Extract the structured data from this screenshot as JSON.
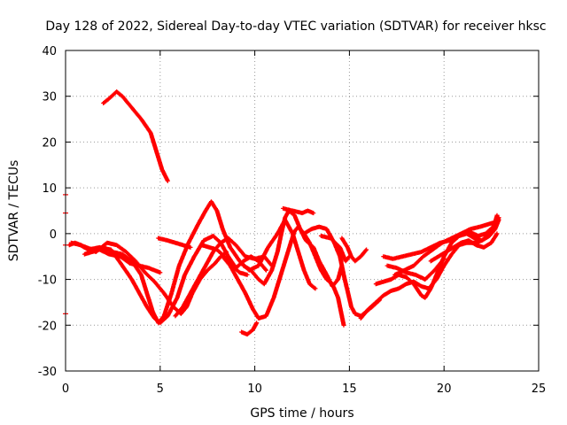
{
  "chart_data": {
    "type": "scatter",
    "title": "Day 128 of 2022, Sidereal Day-to-day VTEC variation (SDTVAR) for receiver hksc",
    "xlabel": "GPS time / hours",
    "ylabel": "SDTVAR / TECUs",
    "xlim": [
      0,
      25
    ],
    "ylim": [
      -30,
      40
    ],
    "xticks": [
      0,
      5,
      10,
      15,
      20,
      25
    ],
    "yticks": [
      -30,
      -20,
      -10,
      0,
      10,
      20,
      30,
      40
    ],
    "grid": true,
    "marker_color": "#ff0000",
    "series": [
      {
        "name": "track-1",
        "points": [
          [
            2.0,
            28.5
          ],
          [
            2.3,
            29.5
          ],
          [
            2.7,
            31.0
          ],
          [
            3.0,
            30.0
          ],
          [
            3.5,
            27.5
          ],
          [
            4.0,
            25.0
          ],
          [
            4.5,
            22.0
          ],
          [
            4.8,
            18.0
          ],
          [
            5.1,
            14.0
          ],
          [
            5.4,
            11.5
          ]
        ]
      },
      {
        "name": "track-2",
        "points": [
          [
            0.2,
            -2.5
          ],
          [
            0.5,
            -2.0
          ],
          [
            0.8,
            -2.5
          ],
          [
            1.0,
            -3.0
          ],
          [
            1.5,
            -3.5
          ],
          [
            2.0,
            -3.0
          ],
          [
            2.5,
            -4.0
          ],
          [
            3.0,
            -4.5
          ],
          [
            3.5,
            -6.0
          ],
          [
            4.0,
            -9.0
          ],
          [
            4.3,
            -13.0
          ],
          [
            4.6,
            -17.0
          ],
          [
            4.9,
            -19.5
          ],
          [
            5.2,
            -18.0
          ],
          [
            5.6,
            -13.0
          ],
          [
            6.0,
            -7.0
          ],
          [
            6.5,
            -2.0
          ],
          [
            7.0,
            2.0
          ],
          [
            7.4,
            5.0
          ],
          [
            7.7,
            7.0
          ],
          [
            8.0,
            5.0
          ],
          [
            8.3,
            1.0
          ],
          [
            8.7,
            -3.0
          ],
          [
            9.2,
            -6.0
          ],
          [
            9.7,
            -8.0
          ],
          [
            10.2,
            -7.0
          ],
          [
            10.7,
            -3.0
          ],
          [
            11.2,
            0.0
          ],
          [
            11.6,
            3.0
          ],
          [
            12.0,
            0.0
          ],
          [
            12.3,
            -4.0
          ],
          [
            12.6,
            -8.0
          ],
          [
            12.9,
            -11.0
          ],
          [
            13.2,
            -12.0
          ]
        ]
      },
      {
        "name": "track-3",
        "points": [
          [
            0.3,
            -2.0
          ],
          [
            0.8,
            -2.5
          ],
          [
            1.2,
            -3.5
          ],
          [
            1.8,
            -3.0
          ],
          [
            2.4,
            -3.5
          ],
          [
            3.0,
            -7.0
          ],
          [
            3.5,
            -10.0
          ],
          [
            3.9,
            -13.0
          ],
          [
            4.3,
            -16.0
          ],
          [
            4.7,
            -18.5
          ],
          [
            5.0,
            -19.5
          ],
          [
            5.4,
            -18.0
          ],
          [
            5.9,
            -14.0
          ],
          [
            6.3,
            -9.0
          ],
          [
            6.8,
            -5.0
          ],
          [
            7.3,
            -1.5
          ],
          [
            7.8,
            -0.5
          ],
          [
            8.2,
            -2.0
          ],
          [
            8.6,
            -5.0
          ],
          [
            9.0,
            -7.5
          ],
          [
            9.4,
            -6.0
          ],
          [
            9.8,
            -5.0
          ],
          [
            10.2,
            -6.0
          ],
          [
            10.6,
            -8.0
          ]
        ]
      },
      {
        "name": "track-4",
        "points": [
          [
            0.6,
            -2.2
          ],
          [
            1.1,
            -3.0
          ],
          [
            1.6,
            -4.0
          ],
          [
            2.2,
            -2.0
          ],
          [
            2.7,
            -2.5
          ],
          [
            3.2,
            -4.0
          ],
          [
            3.7,
            -6.0
          ],
          [
            4.2,
            -8.5
          ],
          [
            4.7,
            -10.5
          ],
          [
            5.2,
            -13.0
          ],
          [
            5.7,
            -16.0
          ],
          [
            6.1,
            -17.5
          ],
          [
            6.4,
            -16.0
          ],
          [
            6.7,
            -13.0
          ],
          [
            7.1,
            -10.0
          ],
          [
            7.5,
            -8.0
          ],
          [
            7.9,
            -6.5
          ],
          [
            8.2,
            -5.0
          ],
          [
            8.5,
            -4.0
          ]
        ]
      },
      {
        "name": "track-5",
        "points": [
          [
            1.0,
            -4.5
          ],
          [
            1.4,
            -4.0
          ],
          [
            1.8,
            -3.5
          ],
          [
            2.3,
            -4.5
          ],
          [
            2.9,
            -5.0
          ],
          [
            3.4,
            -6.5
          ],
          [
            3.9,
            -7.0
          ],
          [
            4.4,
            -7.5
          ],
          [
            5.0,
            -8.5
          ]
        ]
      },
      {
        "name": "track-6",
        "points": [
          [
            5.8,
            -18.0
          ],
          [
            6.2,
            -16.0
          ],
          [
            6.6,
            -13.0
          ],
          [
            7.0,
            -10.0
          ],
          [
            7.4,
            -7.0
          ],
          [
            7.8,
            -4.0
          ],
          [
            8.2,
            -2.0
          ],
          [
            8.6,
            -1.0
          ],
          [
            9.0,
            -2.5
          ],
          [
            9.5,
            -5.0
          ],
          [
            10.0,
            -5.5
          ],
          [
            10.5,
            -5.0
          ],
          [
            10.9,
            -7.0
          ]
        ]
      },
      {
        "name": "track-7",
        "points": [
          [
            8.3,
            -5.0
          ],
          [
            8.7,
            -7.0
          ],
          [
            9.1,
            -10.0
          ],
          [
            9.5,
            -13.0
          ],
          [
            9.9,
            -16.5
          ],
          [
            10.2,
            -18.5
          ],
          [
            10.6,
            -18.0
          ],
          [
            11.0,
            -14.0
          ],
          [
            11.3,
            -10.0
          ],
          [
            11.6,
            -6.0
          ],
          [
            11.9,
            -2.0
          ],
          [
            12.1,
            0.5
          ],
          [
            12.3,
            1.5
          ],
          [
            12.6,
            0.0
          ],
          [
            12.9,
            -2.0
          ],
          [
            13.2,
            -5.0
          ],
          [
            13.5,
            -8.0
          ],
          [
            13.8,
            -10.0
          ],
          [
            14.1,
            -11.0
          ],
          [
            14.4,
            -14.0
          ],
          [
            14.6,
            -18.0
          ],
          [
            14.7,
            -20.0
          ]
        ]
      },
      {
        "name": "track-8",
        "points": [
          [
            9.4,
            -7.0
          ],
          [
            9.8,
            -8.0
          ],
          [
            10.2,
            -10.0
          ],
          [
            10.5,
            -11.0
          ],
          [
            10.9,
            -8.0
          ],
          [
            11.2,
            -4.0
          ],
          [
            11.4,
            0.0
          ],
          [
            11.6,
            3.5
          ],
          [
            11.8,
            5.0
          ],
          [
            12.1,
            4.0
          ],
          [
            12.4,
            1.0
          ],
          [
            12.7,
            -1.5
          ],
          [
            13.1,
            -3.0
          ],
          [
            13.4,
            -6.0
          ],
          [
            13.8,
            -9.0
          ],
          [
            14.1,
            -11.5
          ],
          [
            14.4,
            -10.0
          ],
          [
            14.6,
            -7.0
          ]
        ]
      },
      {
        "name": "track-9",
        "points": [
          [
            12.6,
            0.0
          ],
          [
            13.0,
            1.0
          ],
          [
            13.4,
            1.5
          ],
          [
            13.8,
            1.0
          ],
          [
            14.2,
            -2.0
          ],
          [
            14.5,
            -5.0
          ],
          [
            14.7,
            -9.0
          ],
          [
            14.9,
            -12.5
          ],
          [
            15.1,
            -16.0
          ],
          [
            15.3,
            -17.5
          ],
          [
            15.6,
            -18.0
          ],
          [
            15.9,
            -17.0
          ],
          [
            16.2,
            -16.0
          ],
          [
            16.6,
            -14.5
          ]
        ]
      },
      {
        "name": "track-10",
        "points": [
          [
            9.3,
            -21.5
          ],
          [
            9.6,
            -22.0
          ],
          [
            9.9,
            -21.0
          ],
          [
            10.1,
            -19.5
          ]
        ]
      },
      {
        "name": "track-11",
        "points": [
          [
            4.9,
            -1.0
          ],
          [
            5.4,
            -1.5
          ],
          [
            5.8,
            -2.0
          ],
          [
            6.2,
            -2.5
          ],
          [
            6.6,
            -3.0
          ]
        ]
      },
      {
        "name": "track-12",
        "points": [
          [
            14.6,
            -1.0
          ],
          [
            14.9,
            -3.0
          ],
          [
            15.1,
            -5.0
          ],
          [
            15.3,
            -6.0
          ],
          [
            15.6,
            -5.0
          ],
          [
            15.9,
            -3.5
          ]
        ]
      },
      {
        "name": "track-13",
        "points": [
          [
            13.5,
            -0.5
          ],
          [
            14.0,
            -1.0
          ],
          [
            14.5,
            -3.0
          ],
          [
            14.8,
            -6.0
          ],
          [
            15.0,
            -5.0
          ]
        ]
      },
      {
        "name": "track-14",
        "points": [
          [
            11.5,
            5.5
          ],
          [
            12.0,
            5.0
          ],
          [
            12.5,
            4.5
          ],
          [
            12.8,
            5.0
          ],
          [
            13.1,
            4.5
          ]
        ]
      },
      {
        "name": "track-15",
        "points": [
          [
            15.6,
            -18.5
          ],
          [
            16.0,
            -16.5
          ],
          [
            16.4,
            -15.0
          ],
          [
            16.8,
            -13.5
          ],
          [
            17.2,
            -12.5
          ],
          [
            17.6,
            -12.0
          ],
          [
            18.0,
            -11.0
          ],
          [
            18.4,
            -10.5
          ],
          [
            18.8,
            -11.5
          ],
          [
            19.2,
            -12.0
          ],
          [
            19.6,
            -10.0
          ],
          [
            20.0,
            -7.0
          ],
          [
            20.4,
            -4.5
          ],
          [
            20.8,
            -2.5
          ],
          [
            21.2,
            -2.0
          ],
          [
            21.6,
            -2.0
          ],
          [
            22.0,
            -1.5
          ],
          [
            22.4,
            -0.5
          ],
          [
            22.7,
            1.0
          ],
          [
            22.9,
            3.0
          ]
        ]
      },
      {
        "name": "track-16",
        "points": [
          [
            16.4,
            -11.0
          ],
          [
            16.8,
            -10.5
          ],
          [
            17.2,
            -10.0
          ],
          [
            17.6,
            -9.0
          ],
          [
            18.0,
            -9.5
          ],
          [
            18.4,
            -11.0
          ],
          [
            18.8,
            -13.5
          ],
          [
            19.0,
            -14.0
          ],
          [
            19.3,
            -12.0
          ],
          [
            19.6,
            -9.0
          ],
          [
            20.0,
            -5.0
          ],
          [
            20.4,
            -2.0
          ],
          [
            20.8,
            -0.5
          ],
          [
            21.2,
            0.0
          ],
          [
            21.6,
            -1.0
          ],
          [
            22.0,
            -1.5
          ],
          [
            22.4,
            0.0
          ],
          [
            22.8,
            2.5
          ]
        ]
      },
      {
        "name": "track-17",
        "points": [
          [
            16.8,
            -5.0
          ],
          [
            17.3,
            -5.5
          ],
          [
            17.8,
            -5.0
          ],
          [
            18.3,
            -4.5
          ],
          [
            18.8,
            -4.0
          ],
          [
            19.3,
            -3.0
          ],
          [
            19.8,
            -2.0
          ],
          [
            20.3,
            -1.5
          ],
          [
            20.8,
            -0.5
          ],
          [
            21.3,
            0.5
          ],
          [
            21.8,
            -0.5
          ],
          [
            22.2,
            0.0
          ],
          [
            22.6,
            1.5
          ],
          [
            22.9,
            3.5
          ]
        ]
      },
      {
        "name": "track-18",
        "points": [
          [
            17.4,
            -9.0
          ],
          [
            17.9,
            -8.0
          ],
          [
            18.4,
            -7.0
          ],
          [
            18.9,
            -5.0
          ],
          [
            19.4,
            -3.5
          ],
          [
            19.9,
            -2.0
          ],
          [
            20.4,
            -1.0
          ],
          [
            20.9,
            0.0
          ],
          [
            21.4,
            1.0
          ],
          [
            21.9,
            1.5
          ],
          [
            22.3,
            2.0
          ],
          [
            22.7,
            2.5
          ],
          [
            22.8,
            4.0
          ]
        ]
      },
      {
        "name": "track-19",
        "points": [
          [
            19.3,
            -6.0
          ],
          [
            19.7,
            -5.0
          ],
          [
            20.1,
            -4.0
          ],
          [
            20.5,
            -3.0
          ],
          [
            20.9,
            -2.0
          ],
          [
            21.3,
            -1.5
          ],
          [
            21.7,
            -2.5
          ],
          [
            22.1,
            -3.0
          ],
          [
            22.5,
            -2.0
          ],
          [
            22.8,
            0.0
          ]
        ]
      },
      {
        "name": "track-20",
        "points": [
          [
            17.0,
            -7.0
          ],
          [
            17.5,
            -7.5
          ],
          [
            18.0,
            -8.5
          ],
          [
            18.5,
            -9.0
          ],
          [
            19.0,
            -10.0
          ],
          [
            19.5,
            -8.0
          ],
          [
            20.0,
            -5.5
          ]
        ]
      },
      {
        "name": "track-21",
        "points": [
          [
            7.2,
            -2.5
          ],
          [
            7.6,
            -3.0
          ],
          [
            8.0,
            -3.5
          ],
          [
            8.4,
            -5.0
          ],
          [
            8.8,
            -7.0
          ],
          [
            9.2,
            -8.5
          ],
          [
            9.6,
            -9.0
          ]
        ]
      },
      {
        "name": "track-22",
        "points": [
          [
            0.0,
            8.5
          ],
          [
            0.0,
            4.5
          ],
          [
            0.0,
            -2.5
          ],
          [
            0.0,
            -17.5
          ]
        ]
      }
    ]
  }
}
